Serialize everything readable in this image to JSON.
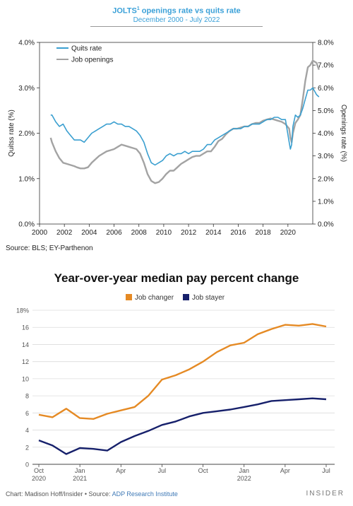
{
  "chart1_header": {
    "title_main": "JOLTS",
    "title_sup": "1",
    "title_rest": " openings rate vs quits rate",
    "subtitle": "December 2000 - July 2022",
    "source": "Source: BLS; EY-Parthenon"
  },
  "chart2_header": {
    "title": "Year-over-year median pay percent change",
    "credit_chart": "Chart: Madison Hoff/Insider • Source: ",
    "credit_source": "ADP Research Institute",
    "brand": "INSIDER"
  },
  "colors": {
    "quits": "#3a9fd0",
    "openings": "#a3a3a3",
    "job_changer": "#e58a24",
    "job_stayer": "#16206b"
  },
  "chart_data": [
    {
      "type": "line",
      "title": "JOLTS1 openings rate vs quits rate",
      "subtitle": "December 2000 - July 2022",
      "xlabel": "",
      "ylabel_left": "Quitss rate (%)",
      "ylabel_right": "Openings rate (%)",
      "x_ticks": [
        "2000",
        "2002",
        "2004",
        "2006",
        "2008",
        "2010",
        "2012",
        "2014",
        "2016",
        "2018",
        "2020"
      ],
      "xlim": [
        2000,
        2022
      ],
      "ylim_left": [
        0,
        4
      ],
      "y_ticks_left": [
        "0.0%",
        "1.0%",
        "2.0%",
        "3.0%",
        "4.0%"
      ],
      "ylim_right": [
        0,
        8
      ],
      "y_ticks_right": [
        "0.0%",
        "1.0%",
        "2.0%",
        "3.0%",
        "4.0%",
        "5.0%",
        "6.0%",
        "7.0%",
        "8.0%"
      ],
      "legend_position": "top-left",
      "series": [
        {
          "name": "Quits rate",
          "axis": "left",
          "x": [
            2000.9,
            2001.0,
            2001.3,
            2001.6,
            2001.9,
            2002.2,
            2002.5,
            2002.8,
            2003.0,
            2003.3,
            2003.6,
            2003.9,
            2004.2,
            2004.5,
            2004.8,
            2005.1,
            2005.4,
            2005.7,
            2006.0,
            2006.3,
            2006.6,
            2006.9,
            2007.2,
            2007.5,
            2007.8,
            2008.1,
            2008.4,
            2008.7,
            2009.0,
            2009.3,
            2009.6,
            2009.9,
            2010.2,
            2010.5,
            2010.8,
            2011.1,
            2011.4,
            2011.7,
            2012.0,
            2012.3,
            2012.6,
            2012.9,
            2013.2,
            2013.5,
            2013.8,
            2014.1,
            2014.4,
            2014.7,
            2015.0,
            2015.3,
            2015.6,
            2015.9,
            2016.2,
            2016.5,
            2016.8,
            2017.1,
            2017.4,
            2017.7,
            2018.0,
            2018.3,
            2018.6,
            2018.9,
            2019.2,
            2019.5,
            2019.8,
            2020.1,
            2020.2,
            2020.3,
            2020.4,
            2020.6,
            2020.8,
            2021.0,
            2021.2,
            2021.4,
            2021.6,
            2021.8,
            2022.0,
            2022.3,
            2022.5
          ],
          "values": [
            2.4,
            2.4,
            2.25,
            2.15,
            2.2,
            2.05,
            1.95,
            1.85,
            1.85,
            1.85,
            1.8,
            1.9,
            2.0,
            2.05,
            2.1,
            2.15,
            2.2,
            2.2,
            2.25,
            2.2,
            2.2,
            2.15,
            2.15,
            2.1,
            2.05,
            1.95,
            1.8,
            1.55,
            1.35,
            1.3,
            1.35,
            1.4,
            1.5,
            1.55,
            1.5,
            1.55,
            1.55,
            1.6,
            1.55,
            1.6,
            1.6,
            1.6,
            1.65,
            1.75,
            1.75,
            1.85,
            1.9,
            1.95,
            2.0,
            2.05,
            2.1,
            2.1,
            2.1,
            2.15,
            2.15,
            2.2,
            2.2,
            2.2,
            2.25,
            2.3,
            2.3,
            2.35,
            2.35,
            2.3,
            2.3,
            1.8,
            1.65,
            1.75,
            2.15,
            2.4,
            2.35,
            2.4,
            2.55,
            2.75,
            2.95,
            2.95,
            3.0,
            2.85,
            2.8
          ]
        },
        {
          "name": "Job openings",
          "axis": "right",
          "x": [
            2000.9,
            2001.0,
            2001.3,
            2001.6,
            2001.9,
            2002.2,
            2002.5,
            2002.8,
            2003.0,
            2003.3,
            2003.6,
            2003.9,
            2004.2,
            2004.5,
            2004.8,
            2005.1,
            2005.4,
            2005.7,
            2006.0,
            2006.3,
            2006.6,
            2006.9,
            2007.2,
            2007.5,
            2007.8,
            2008.1,
            2008.4,
            2008.7,
            2009.0,
            2009.3,
            2009.6,
            2009.9,
            2010.2,
            2010.5,
            2010.8,
            2011.1,
            2011.4,
            2011.7,
            2012.0,
            2012.3,
            2012.6,
            2012.9,
            2013.2,
            2013.5,
            2013.8,
            2014.1,
            2014.4,
            2014.7,
            2015.0,
            2015.3,
            2015.6,
            2015.9,
            2016.2,
            2016.5,
            2016.8,
            2017.1,
            2017.4,
            2017.7,
            2018.0,
            2018.3,
            2018.6,
            2018.9,
            2019.2,
            2019.5,
            2019.8,
            2020.1,
            2020.2,
            2020.3,
            2020.4,
            2020.6,
            2020.8,
            2021.0,
            2021.2,
            2021.4,
            2021.6,
            2021.8,
            2022.0,
            2022.3,
            2022.5
          ],
          "values": [
            3.8,
            3.6,
            3.2,
            2.9,
            2.7,
            2.65,
            2.6,
            2.55,
            2.5,
            2.45,
            2.45,
            2.5,
            2.7,
            2.85,
            3.0,
            3.1,
            3.2,
            3.25,
            3.3,
            3.4,
            3.5,
            3.45,
            3.4,
            3.35,
            3.3,
            3.1,
            2.7,
            2.2,
            1.9,
            1.8,
            1.85,
            2.0,
            2.2,
            2.35,
            2.35,
            2.5,
            2.65,
            2.75,
            2.85,
            2.95,
            3.0,
            3.0,
            3.1,
            3.2,
            3.2,
            3.4,
            3.65,
            3.75,
            3.95,
            4.1,
            4.2,
            4.2,
            4.25,
            4.3,
            4.3,
            4.4,
            4.45,
            4.45,
            4.55,
            4.6,
            4.65,
            4.6,
            4.55,
            4.5,
            4.4,
            4.2,
            3.8,
            3.6,
            4.0,
            4.45,
            4.6,
            4.8,
            5.5,
            6.3,
            6.9,
            7.0,
            7.2,
            7.1,
            6.8
          ]
        }
      ]
    },
    {
      "type": "line",
      "title": "Year-over-year median pay percent change",
      "xlabel": "",
      "ylabel": "",
      "categories": [
        "Oct 2020",
        "Nov 2020",
        "Dec 2020",
        "Jan 2021",
        "Feb 2021",
        "Mar 2021",
        "Apr 2021",
        "May 2021",
        "Jun 2021",
        "Jul 2021",
        "Aug 2021",
        "Sep 2021",
        "Oct 2021",
        "Nov 2021",
        "Dec 2021",
        "Jan 2022",
        "Feb 2022",
        "Mar 2022",
        "Apr 2022",
        "May 2022",
        "Jun 2022",
        "Jul 2022"
      ],
      "x_tick_labels": [
        {
          "index": 0,
          "line1": "Oct",
          "line2": "2020"
        },
        {
          "index": 3,
          "line1": "Jan",
          "line2": "2021"
        },
        {
          "index": 6,
          "line1": "Apr",
          "line2": ""
        },
        {
          "index": 9,
          "line1": "Jul",
          "line2": ""
        },
        {
          "index": 12,
          "line1": "Oct",
          "line2": ""
        },
        {
          "index": 15,
          "line1": "Jan",
          "line2": "2022"
        },
        {
          "index": 18,
          "line1": "Apr",
          "line2": ""
        },
        {
          "index": 21,
          "line1": "Jul",
          "line2": ""
        }
      ],
      "ylim": [
        0,
        18
      ],
      "y_ticks": [
        "0",
        "2",
        "4",
        "6",
        "8",
        "10",
        "12",
        "14",
        "16",
        "18%"
      ],
      "grid": true,
      "legend_position": "top-center",
      "series": [
        {
          "name": "Job changer",
          "values": [
            5.8,
            5.5,
            6.5,
            5.4,
            5.3,
            5.9,
            6.3,
            6.7,
            8.0,
            9.9,
            10.4,
            11.1,
            12.0,
            13.1,
            13.9,
            14.2,
            15.2,
            15.8,
            16.3,
            16.2,
            16.4,
            16.1
          ]
        },
        {
          "name": "Job stayer",
          "values": [
            2.8,
            2.2,
            1.2,
            1.9,
            1.8,
            1.6,
            2.6,
            3.3,
            3.9,
            4.6,
            5.0,
            5.6,
            6.0,
            6.2,
            6.4,
            6.7,
            7.0,
            7.4,
            7.5,
            7.6,
            7.7,
            7.6
          ]
        }
      ]
    }
  ]
}
